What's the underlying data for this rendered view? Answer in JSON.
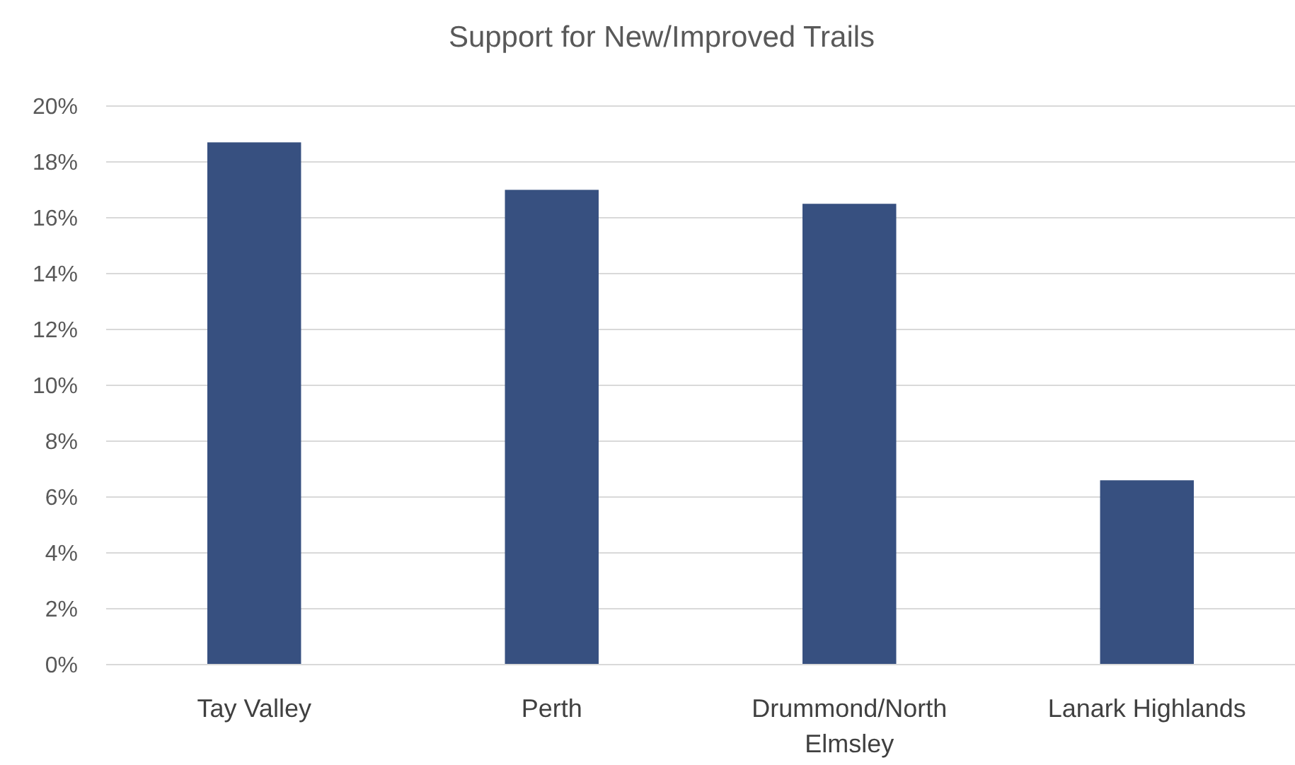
{
  "chart_data": {
    "type": "bar",
    "title": "Support for New/Improved Trails",
    "categories": [
      "Tay Valley",
      "Perth",
      "Drummond/North Elmsley",
      "Lanark Highlands"
    ],
    "values": [
      18.7,
      17.0,
      16.5,
      6.6
    ],
    "color": "#375080",
    "ylim": [
      0,
      20
    ],
    "yticks": [
      {
        "value": 0,
        "label": "0%"
      },
      {
        "value": 2,
        "label": "2%"
      },
      {
        "value": 4,
        "label": "4%"
      },
      {
        "value": 6,
        "label": "6%"
      },
      {
        "value": 8,
        "label": "8%"
      },
      {
        "value": 10,
        "label": "10%"
      },
      {
        "value": 12,
        "label": "12%"
      },
      {
        "value": 14,
        "label": "14%"
      },
      {
        "value": 16,
        "label": "16%"
      },
      {
        "value": 18,
        "label": "18%"
      },
      {
        "value": 20,
        "label": "20%"
      }
    ],
    "grid": "y"
  }
}
